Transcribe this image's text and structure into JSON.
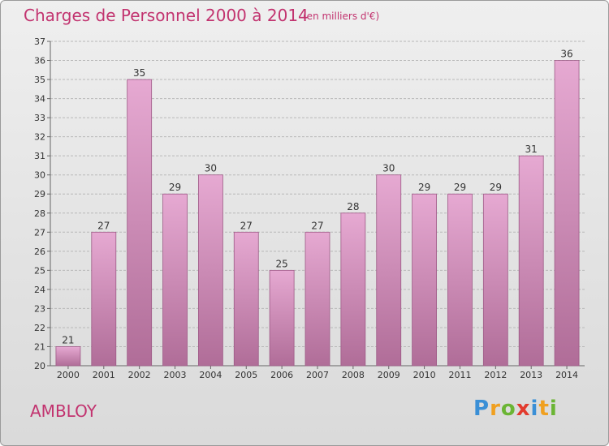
{
  "header": {
    "title": "Charges de Personnel 2000 à 2014",
    "subtitle": "(en milliers d'€)"
  },
  "footer": {
    "town": "AMBLOY",
    "logo": "Proxiti"
  },
  "colors": {
    "title": "#c2336f",
    "bar_top": "#e6a9d2",
    "bar_bottom": "#b06d98",
    "bar_stroke": "#9d5a86",
    "grid": "#b8b8b8",
    "axis_text": "#333333"
  },
  "chart_data": {
    "type": "bar",
    "title": "Charges de Personnel 2000 à 2014",
    "subtitle": "(en milliers d'€)",
    "categories": [
      "2000",
      "2001",
      "2002",
      "2003",
      "2004",
      "2005",
      "2006",
      "2007",
      "2008",
      "2009",
      "2010",
      "2011",
      "2012",
      "2013",
      "2014"
    ],
    "values": [
      21,
      27,
      35,
      29,
      30,
      27,
      25,
      27,
      28,
      30,
      29,
      29,
      29,
      31,
      36
    ],
    "xlabel": "",
    "ylabel": "",
    "ylim": [
      20,
      37
    ],
    "yticks": [
      20,
      21,
      22,
      23,
      24,
      25,
      26,
      27,
      28,
      29,
      30,
      31,
      32,
      33,
      34,
      35,
      36,
      37
    ],
    "grid": true,
    "data_labels": true
  }
}
